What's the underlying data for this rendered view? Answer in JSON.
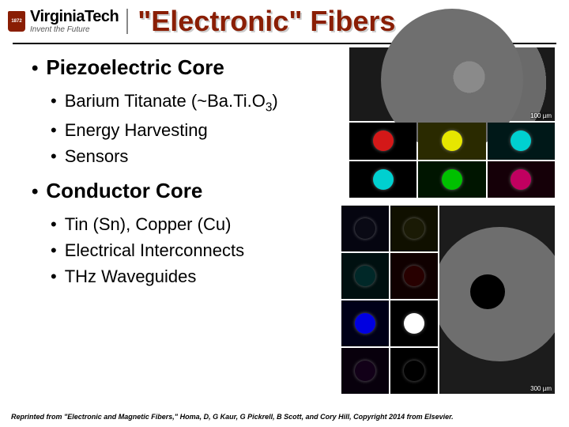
{
  "header": {
    "logo_year": "1872",
    "university": "VirginiaTech",
    "tagline": "Invent the Future",
    "title_quoted": "\"Electronic\"",
    "title_rest": " Fibers"
  },
  "sections": [
    {
      "title": "Piezoelectric Core",
      "items": [
        "Barium Titanate (~Ba.Ti.O",
        "Energy Harvesting",
        "Sensors"
      ],
      "sub3": "3",
      "sub3_suffix": ")"
    },
    {
      "title": "Conductor Core",
      "items": [
        "Tin (Sn), Copper (Cu)",
        "Electrical Interconnects",
        "THz Waveguides"
      ]
    }
  ],
  "images": {
    "top": {
      "scale": "100 µm",
      "tiles": [
        {
          "bg": "#000000",
          "dot": "#d41818"
        },
        {
          "bg": "#2a2a00",
          "dot": "#e6e600"
        },
        {
          "bg": "#001818",
          "dot": "#00d0d0"
        },
        {
          "bg": "#000000",
          "dot": "#00d0d0"
        },
        {
          "bg": "#001500",
          "dot": "#00c000"
        },
        {
          "bg": "#150008",
          "dot": "#c00060"
        }
      ]
    },
    "bottom": {
      "scale": "300 µm",
      "tiles": [
        {
          "bg": "#050510",
          "dot": "#0a0a15"
        },
        {
          "bg": "#101000",
          "dot": "#1a1a05"
        },
        {
          "bg": "#001010",
          "dot": "#002828"
        },
        {
          "bg": "#100000",
          "dot": "#280000"
        },
        {
          "bg": "#000018",
          "dot": "#0000e0"
        },
        {
          "bg": "#000000",
          "dot": "#ffffff"
        },
        {
          "bg": "#08000c",
          "dot": "#120018"
        },
        {
          "bg": "#000000",
          "dot": "#000000"
        }
      ]
    }
  },
  "citation": "Reprinted from \"Electronic and Magnetic Fibers,\" Homa, D, G Kaur, G Pickrell, B Scott, and Cory Hill, Copyright 2014 from Elsevier."
}
